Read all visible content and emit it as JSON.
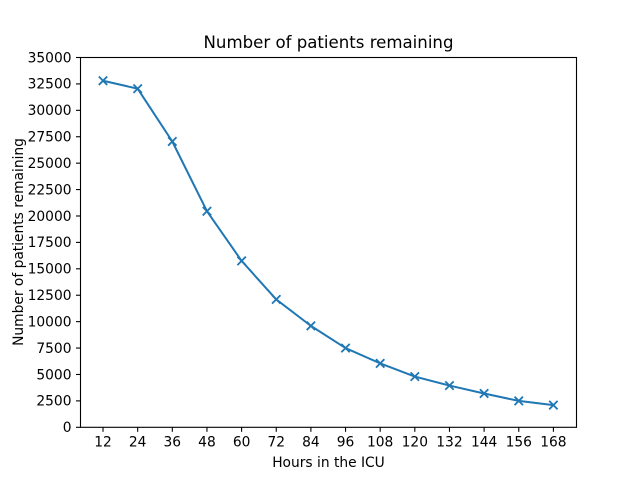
{
  "chart_data": {
    "type": "line",
    "title": "Number of patients remaining",
    "xlabel": "Hours in the ICU",
    "ylabel": "Number of patients remaining",
    "x": [
      12,
      24,
      36,
      48,
      60,
      72,
      84,
      96,
      108,
      120,
      132,
      144,
      156,
      168
    ],
    "y": [
      32800,
      32050,
      27050,
      20450,
      15750,
      12100,
      9600,
      7500,
      6050,
      4800,
      3950,
      3200,
      2500,
      2100
    ],
    "xticks": [
      12,
      24,
      36,
      48,
      60,
      72,
      84,
      96,
      108,
      120,
      132,
      144,
      156,
      168
    ],
    "yticks": [
      0,
      2500,
      5000,
      7500,
      10000,
      12500,
      15000,
      17500,
      20000,
      22500,
      25000,
      27500,
      30000,
      32500,
      35000
    ],
    "xlim": [
      4.2,
      176.0
    ],
    "ylim": [
      0,
      35000
    ],
    "marker": "x",
    "line_color": "#1f77b4",
    "axis_color": "#000000",
    "background_color": "#ffffff",
    "grid": false,
    "legend": null
  }
}
